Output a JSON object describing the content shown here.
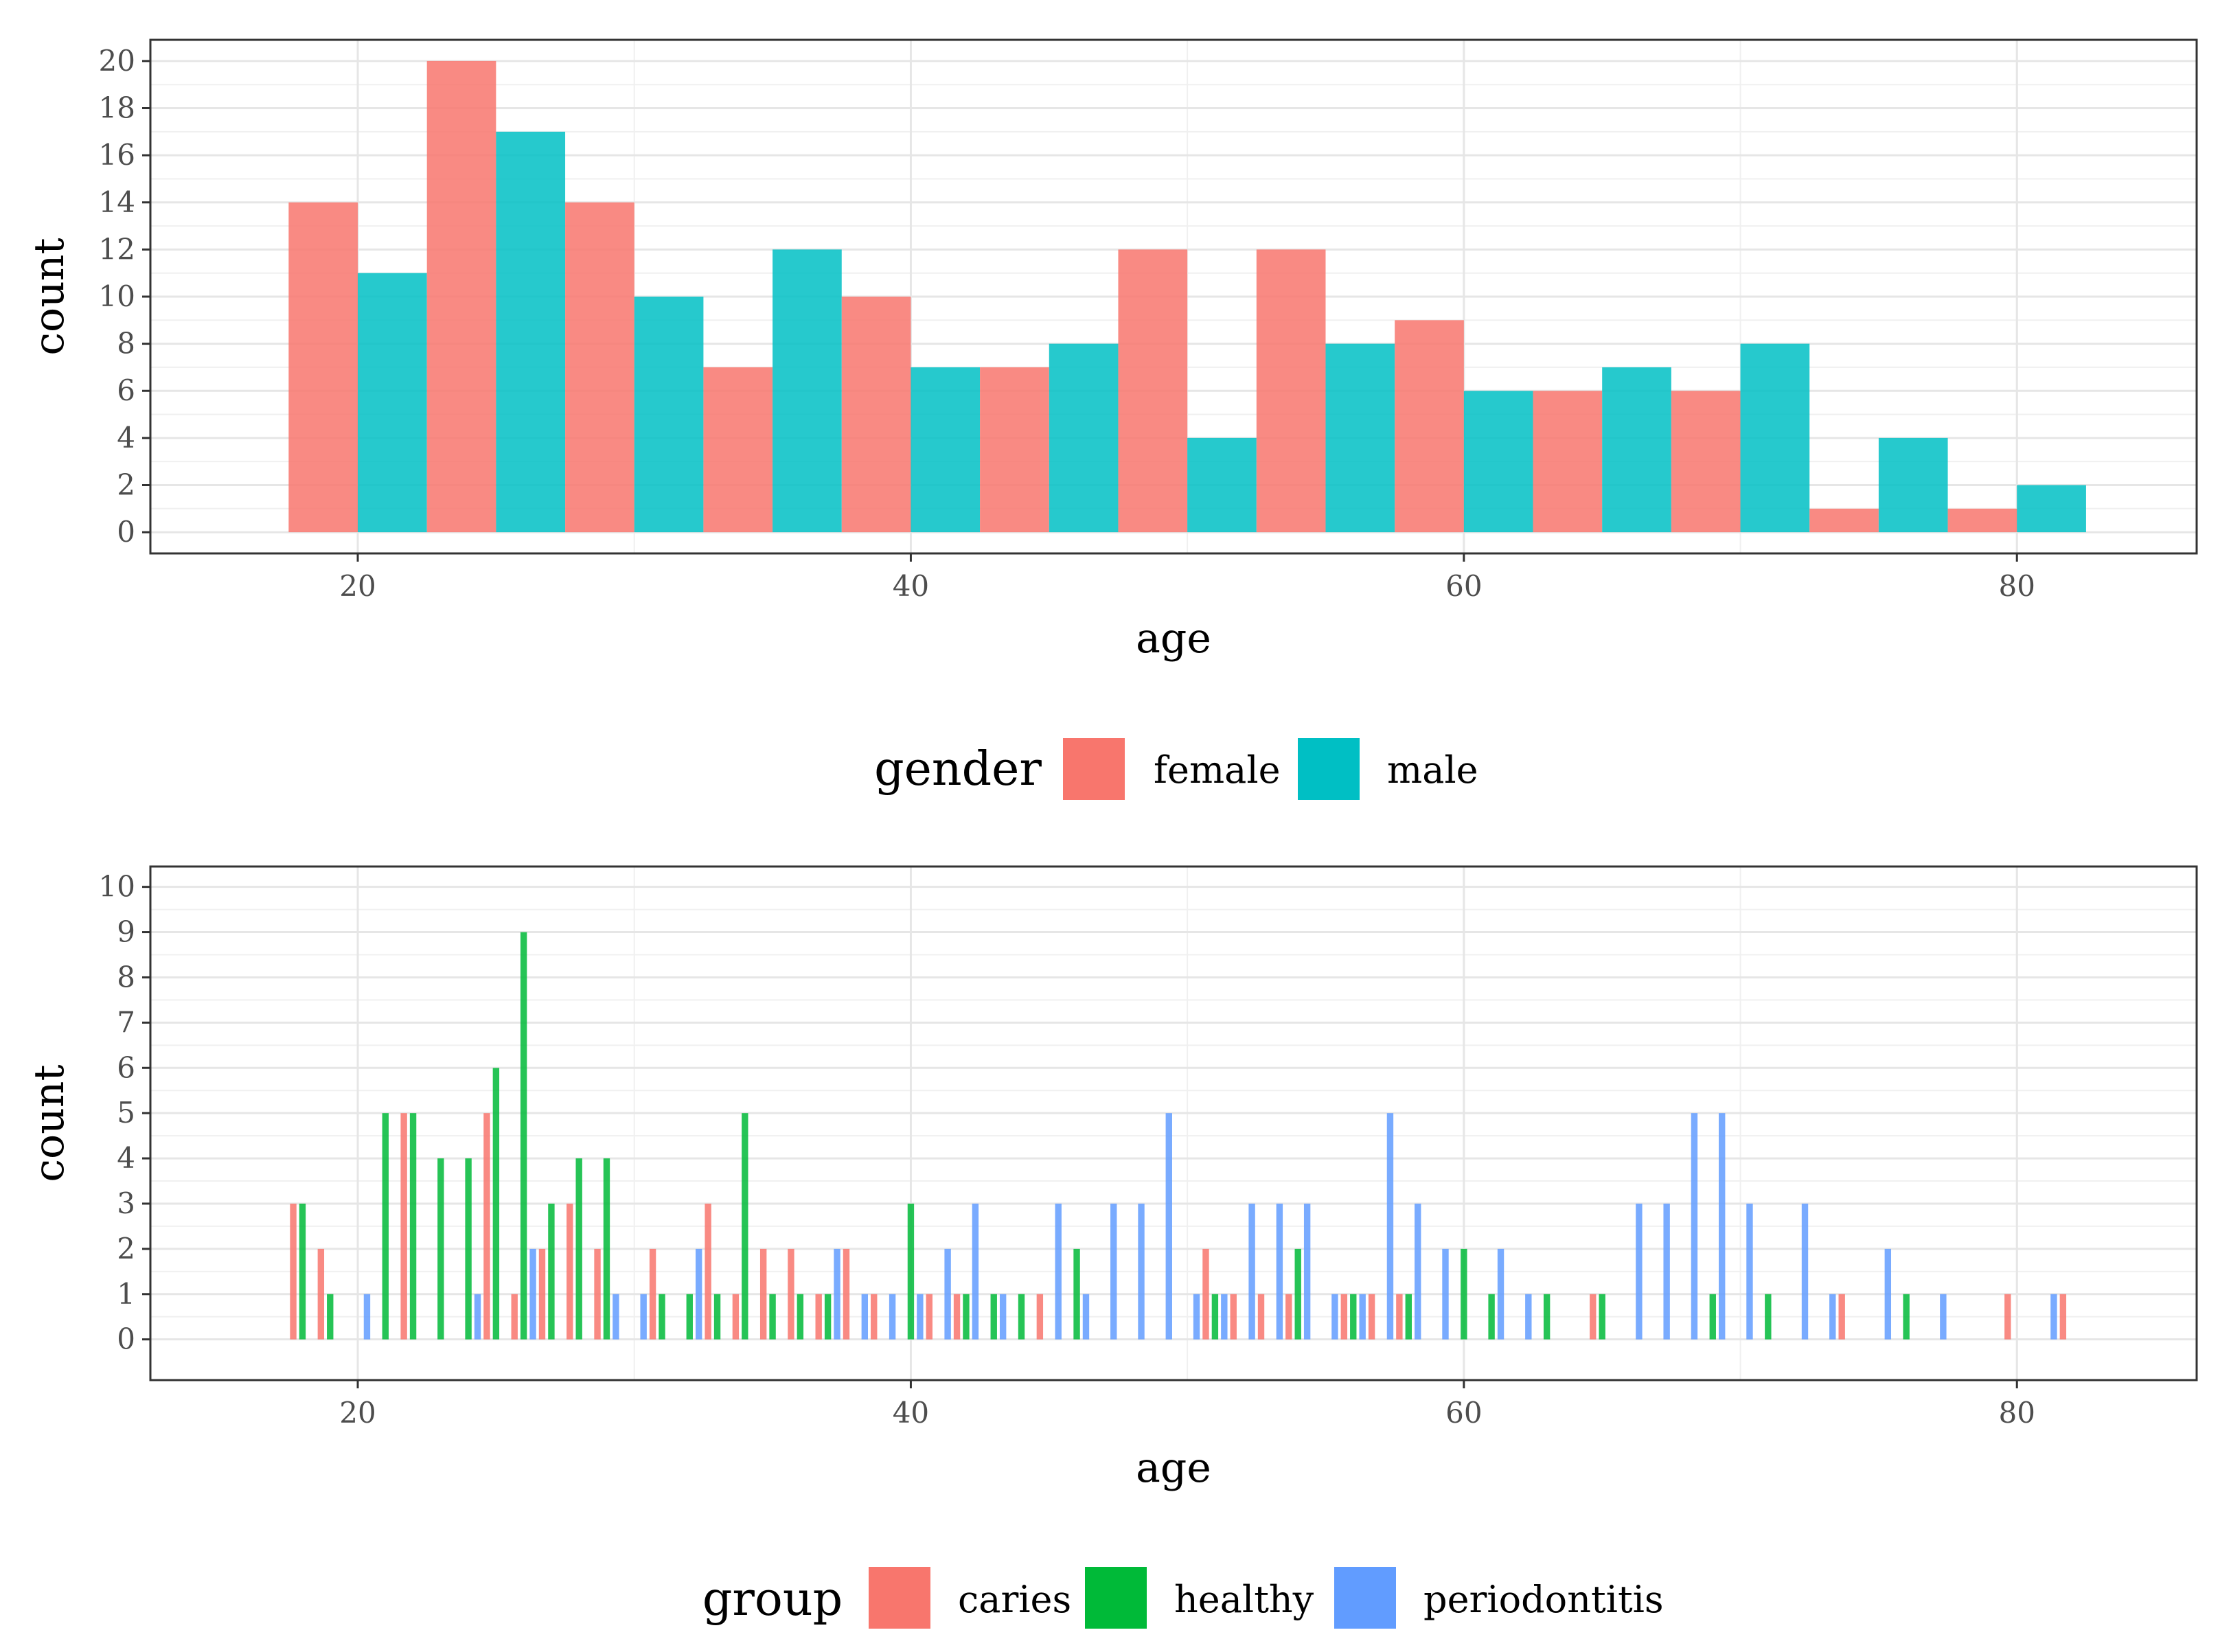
{
  "chart_data": [
    {
      "type": "bar",
      "title": "",
      "xlabel": "age",
      "ylabel": "count",
      "xlim": [
        12.5,
        86.5
      ],
      "ylim": [
        -0.9,
        20.9
      ],
      "x_ticks": [
        "20",
        "40",
        "60",
        "80"
      ],
      "y_ticks": [
        "0",
        "2",
        "4",
        "6",
        "8",
        "10",
        "12",
        "14",
        "16",
        "18",
        "20"
      ],
      "grid": true,
      "legend": {
        "title": "gender",
        "position": "bottom"
      },
      "bin_width": 5,
      "x": [
        20,
        25,
        30,
        35,
        40,
        45,
        50,
        55,
        60,
        65,
        70,
        75,
        80
      ],
      "series": [
        {
          "name": "female",
          "color": "#F8766D",
          "values": [
            14,
            20,
            14,
            7,
            10,
            7,
            12,
            12,
            9,
            6,
            6,
            1,
            1
          ]
        },
        {
          "name": "male",
          "color": "#00BFC4",
          "values": [
            11,
            17,
            10,
            12,
            7,
            8,
            4,
            8,
            6,
            7,
            8,
            4,
            2
          ]
        }
      ]
    },
    {
      "type": "bar",
      "title": "",
      "xlabel": "age",
      "ylabel": "count",
      "xlim": [
        12.5,
        86.5
      ],
      "ylim": [
        -0.9,
        10.45
      ],
      "x_ticks": [
        "20",
        "40",
        "60",
        "80"
      ],
      "y_ticks": [
        "0",
        "1",
        "2",
        "3",
        "4",
        "5",
        "6",
        "7",
        "8",
        "9",
        "10"
      ],
      "grid": true,
      "legend": {
        "title": "group",
        "position": "bottom"
      },
      "bin_width": 1,
      "x": [
        18,
        19,
        20,
        21,
        22,
        23,
        24,
        25,
        26,
        27,
        28,
        29,
        30,
        31,
        32,
        33,
        34,
        35,
        36,
        37,
        38,
        39,
        40,
        41,
        42,
        43,
        44,
        45,
        46,
        47,
        48,
        49,
        50,
        51,
        52,
        53,
        54,
        55,
        56,
        57,
        58,
        59,
        60,
        61,
        62,
        63,
        64,
        65,
        66,
        67,
        68,
        69,
        70,
        71,
        72,
        73,
        74,
        75,
        76,
        77,
        78,
        79,
        80,
        81,
        82
      ],
      "series": [
        {
          "name": "caries",
          "color": "#F8766D",
          "values": [
            3,
            2,
            0,
            0,
            5,
            0,
            0,
            5,
            1,
            2,
            3,
            2,
            0,
            2,
            0,
            3,
            1,
            2,
            2,
            1,
            2,
            1,
            0,
            1,
            1,
            0,
            0,
            1,
            0,
            0,
            0,
            0,
            0,
            2,
            1,
            1,
            1,
            0,
            1,
            1,
            1,
            0,
            0,
            0,
            0,
            0,
            0,
            1,
            0,
            0,
            0,
            0,
            0,
            0,
            0,
            0,
            1,
            0,
            0,
            0,
            0,
            0,
            1,
            0,
            1
          ]
        },
        {
          "name": "healthy",
          "color": "#00BA38",
          "values": [
            3,
            1,
            0,
            5,
            5,
            4,
            4,
            6,
            9,
            3,
            4,
            4,
            0,
            1,
            1,
            1,
            5,
            1,
            1,
            1,
            0,
            0,
            3,
            0,
            1,
            1,
            1,
            0,
            2,
            0,
            0,
            0,
            0,
            1,
            0,
            0,
            2,
            0,
            1,
            0,
            1,
            0,
            2,
            1,
            0,
            1,
            0,
            1,
            0,
            0,
            0,
            1,
            0,
            1,
            0,
            0,
            0,
            0,
            1,
            0,
            0,
            0,
            0,
            0,
            0
          ]
        },
        {
          "name": "periodontitis",
          "color": "#619CFF",
          "values": [
            0,
            0,
            1,
            0,
            0,
            0,
            1,
            0,
            2,
            0,
            0,
            1,
            1,
            0,
            2,
            0,
            0,
            0,
            0,
            2,
            1,
            1,
            1,
            2,
            3,
            1,
            0,
            3,
            1,
            3,
            3,
            5,
            1,
            1,
            3,
            3,
            3,
            1,
            1,
            5,
            3,
            2,
            0,
            2,
            1,
            0,
            0,
            0,
            3,
            3,
            5,
            5,
            3,
            0,
            3,
            1,
            0,
            2,
            0,
            1,
            0,
            0,
            0,
            1,
            0
          ]
        }
      ]
    }
  ]
}
